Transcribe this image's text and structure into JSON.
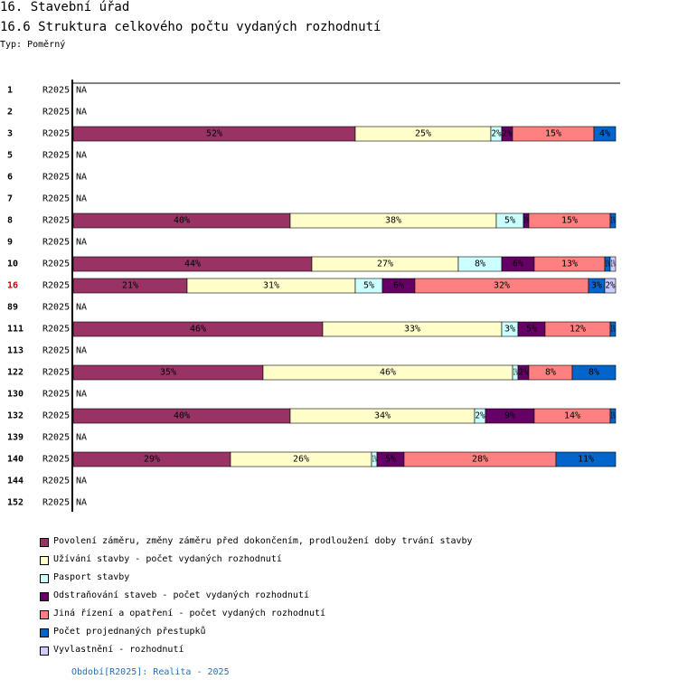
{
  "header": {
    "title": "16. Stavební úřad",
    "subtitle": "16.6 Struktura celkového počtu vydaných rozhodnutí",
    "type_label": "Typ: Poměrný"
  },
  "footer": {
    "text": "Období[R2025]: Realita - 2025"
  },
  "colors": {
    "highlight_row": "#cc0000",
    "footer_text": "#1f6fc0"
  },
  "chart_data": {
    "type": "bar",
    "orientation": "horizontal",
    "stacked": "percent",
    "title": "16.6 Struktura celkového počtu vydaných rozhodnutí",
    "na_label": "NA",
    "period_label": "R2025",
    "highlight_category": "16",
    "series": [
      {
        "name": "Povolení záměru,  změny záměru před dokončením, prodloužení doby trvání stavby",
        "color": "#993366"
      },
      {
        "name": "Užívání stavby - počet vydaných rozhodnutí",
        "color": "#ffffcc"
      },
      {
        "name": "Pasport stavby",
        "color": "#ccffff"
      },
      {
        "name": "Odstraňování staveb - počet vydaných rozhodnutí",
        "color": "#660066"
      },
      {
        "name": "Jiná řízení a opatření - počet vydaných rozhodnutí",
        "color": "#ff8080"
      },
      {
        "name": "Počet projednaných přestupků",
        "color": "#0066cc"
      },
      {
        "name": "Vyvlastnění - rozhodnutí",
        "color": "#ccccff"
      }
    ],
    "rows": [
      {
        "category": "1",
        "values": null
      },
      {
        "category": "2",
        "values": null
      },
      {
        "category": "3",
        "values": [
          52,
          25,
          2,
          2,
          15,
          4,
          0
        ]
      },
      {
        "category": "5",
        "values": null
      },
      {
        "category": "6",
        "values": null
      },
      {
        "category": "7",
        "values": null
      },
      {
        "category": "8",
        "values": [
          40,
          38,
          5,
          1,
          15,
          1,
          0
        ]
      },
      {
        "category": "9",
        "values": null
      },
      {
        "category": "10",
        "values": [
          44,
          27,
          8,
          6,
          13,
          1,
          1
        ]
      },
      {
        "category": "16",
        "values": [
          21,
          31,
          5,
          6,
          32,
          3,
          2
        ]
      },
      {
        "category": "89",
        "values": null
      },
      {
        "category": "111",
        "values": [
          46,
          33,
          3,
          5,
          12,
          1,
          0
        ]
      },
      {
        "category": "113",
        "values": null
      },
      {
        "category": "122",
        "values": [
          35,
          46,
          1,
          2,
          8,
          8,
          0
        ]
      },
      {
        "category": "130",
        "values": null
      },
      {
        "category": "132",
        "values": [
          40,
          34,
          2,
          9,
          14,
          1,
          0
        ]
      },
      {
        "category": "139",
        "values": null
      },
      {
        "category": "140",
        "values": [
          29,
          26,
          1,
          5,
          28,
          11,
          0
        ]
      },
      {
        "category": "144",
        "values": null
      },
      {
        "category": "152",
        "values": null
      }
    ]
  }
}
